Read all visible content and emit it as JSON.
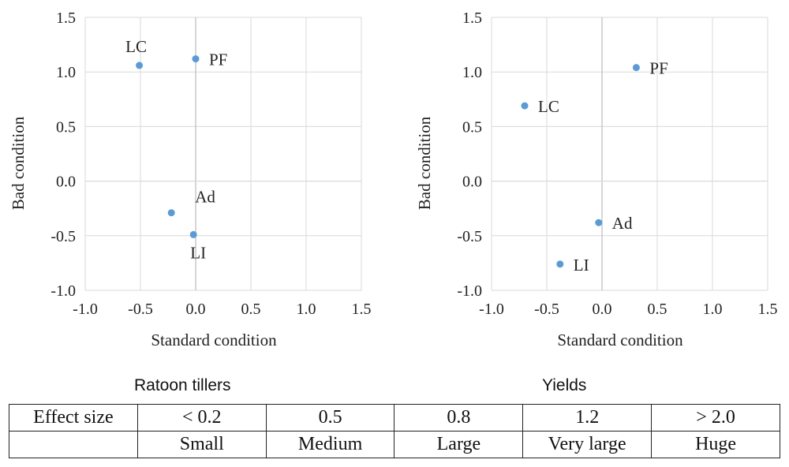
{
  "chart_data": [
    {
      "type": "scatter",
      "title": "Ratoon tillers",
      "xlabel": "Standard condition",
      "ylabel": "Bad condition",
      "xlim": [
        -1.0,
        1.5
      ],
      "ylim": [
        -1.0,
        1.5
      ],
      "xticks": [
        "-1.0",
        "-0.5",
        "0.0",
        "0.5",
        "1.0",
        "1.5"
      ],
      "yticks": [
        "-1.0",
        "-0.5",
        "0.0",
        "0.5",
        "1.0",
        "1.5"
      ],
      "grid": true,
      "color": "#5b9bd5",
      "points": [
        {
          "label": "LC",
          "x": -0.51,
          "y": 1.06,
          "label_pos": "above"
        },
        {
          "label": "PF",
          "x": 0.0,
          "y": 1.12,
          "label_pos": "right"
        },
        {
          "label": "Ad",
          "x": -0.22,
          "y": -0.29,
          "label_pos": "above-right"
        },
        {
          "label": "LI",
          "x": -0.02,
          "y": -0.49,
          "label_pos": "below"
        }
      ]
    },
    {
      "type": "scatter",
      "title": "Yields",
      "xlabel": "Standard condition",
      "ylabel": "Bad condition",
      "xlim": [
        -1.0,
        1.5
      ],
      "ylim": [
        -1.0,
        1.5
      ],
      "xticks": [
        "-1.0",
        "-0.5",
        "0.0",
        "0.5",
        "1.0",
        "1.5"
      ],
      "yticks": [
        "-1.0",
        "-0.5",
        "0.0",
        "0.5",
        "1.0",
        "1.5"
      ],
      "grid": true,
      "color": "#5b9bd5",
      "points": [
        {
          "label": "PF",
          "x": 0.31,
          "y": 1.04,
          "label_pos": "right"
        },
        {
          "label": "LC",
          "x": -0.7,
          "y": 0.69,
          "label_pos": "right"
        },
        {
          "label": "Ad",
          "x": -0.03,
          "y": -0.38,
          "label_pos": "right"
        },
        {
          "label": "LI",
          "x": -0.38,
          "y": -0.76,
          "label_pos": "right"
        }
      ]
    }
  ],
  "table": {
    "rows": [
      [
        "Effect size",
        "< 0.2",
        "0.5",
        "0.8",
        "1.2",
        "> 2.0"
      ],
      [
        "",
        "Small",
        "Medium",
        "Large",
        "Very large",
        "Huge"
      ]
    ]
  }
}
